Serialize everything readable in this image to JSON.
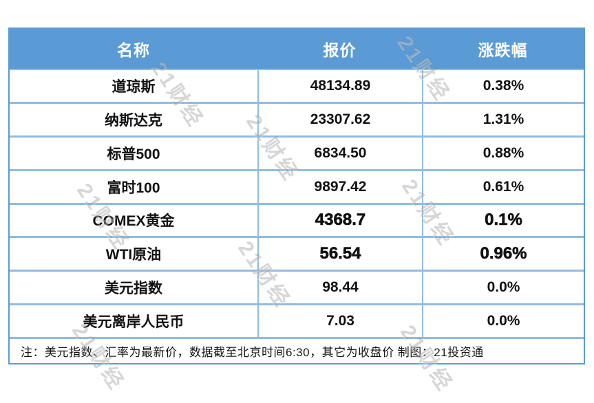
{
  "chart_data": {
    "type": "table",
    "columns": [
      "名称",
      "报价",
      "涨跌幅"
    ],
    "rows": [
      {
        "name": "道琼斯",
        "price": "48134.89",
        "change": "0.38%",
        "emphasis": false
      },
      {
        "name": "纳斯达克",
        "price": "23307.62",
        "change": "1.31%",
        "emphasis": false
      },
      {
        "name": "标普500",
        "price": "6834.50",
        "change": "0.88%",
        "emphasis": false
      },
      {
        "name": "富时100",
        "price": "9897.42",
        "change": "0.61%",
        "emphasis": false
      },
      {
        "name": "COMEX黄金",
        "price": "4368.7",
        "change": "0.1%",
        "emphasis": true
      },
      {
        "name": "WTI原油",
        "price": "56.54",
        "change": "0.96%",
        "emphasis": true
      },
      {
        "name": "美元指数",
        "price": "98.44",
        "change": "0.0%",
        "emphasis": false
      },
      {
        "name": "美元离岸人民币",
        "price": "7.03",
        "change": "0.0%",
        "emphasis": false
      }
    ],
    "note": "注：美元指数、汇率为最新价，数据截至北京时间6:30，其它为收盘价 制图：21投资通"
  },
  "watermark": {
    "text": "21财经"
  },
  "colors": {
    "header_bg": "#5B9BD5",
    "header_text": "#FFFFFF",
    "grid_line": "#8FBCE3",
    "outer_border": "#5B9BD5",
    "body_text": "#111111"
  }
}
